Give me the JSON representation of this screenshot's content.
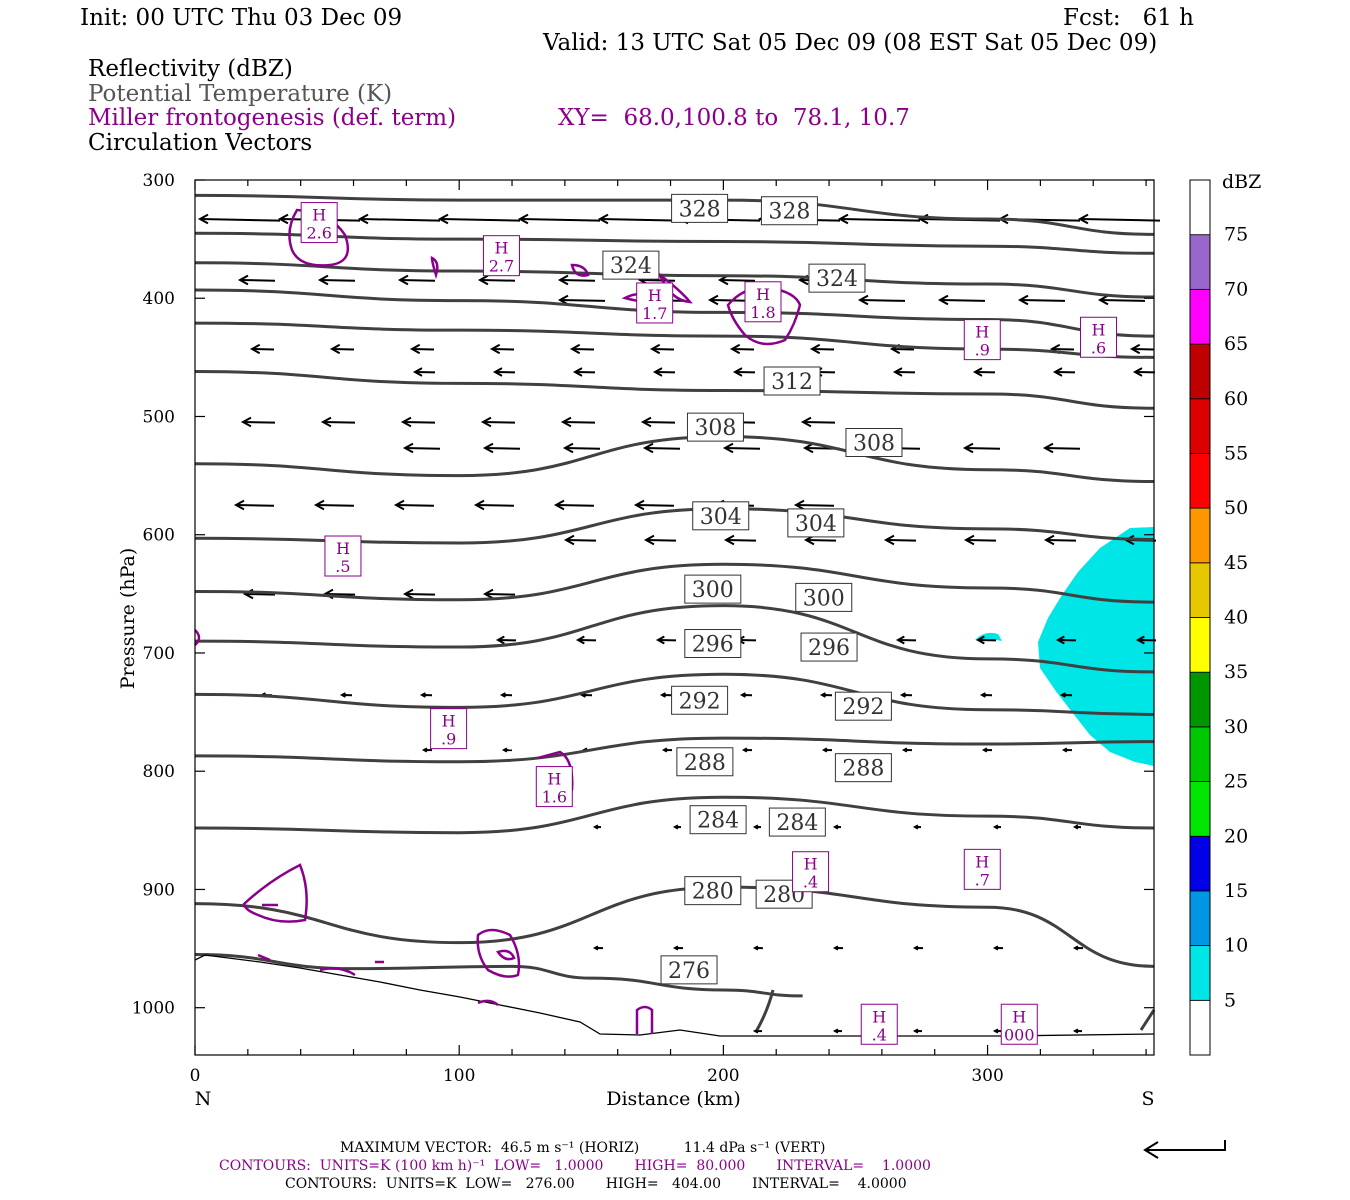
{
  "header": {
    "init": "Init: 00 UTC Thu 03 Dec 09",
    "fcst": "Fcst:   61 h",
    "valid": "Valid: 13 UTC Sat 05 Dec 09 (08 EST Sat 05 Dec 09)",
    "field1": "Reflectivity (dBZ)",
    "field2": "Potential Temperature (K)",
    "field3": "Miller frontogenesis (def. term)",
    "xy": "XY=  68.0,100.8 to  78.1, 10.7",
    "field4": "Circulation Vectors"
  },
  "colors": {
    "theta": "#404040",
    "frontogenesis": "#8b008b",
    "reflectivity_5": "#00e6e6"
  },
  "chart_data": {
    "type": "cross-section",
    "xlabel": "Distance (km)",
    "ylabel": "Pressure (hPa)",
    "xlim": [
      0,
      363
    ],
    "ylim": [
      1040,
      300
    ],
    "x_ticks": [
      "0",
      "100",
      "200",
      "300"
    ],
    "x_tick_values": [
      0,
      100,
      200,
      300
    ],
    "y_ticks": [
      "300",
      "400",
      "500",
      "600",
      "700",
      "800",
      "900",
      "1000"
    ],
    "y_tick_values": [
      300,
      400,
      500,
      600,
      700,
      800,
      900,
      1000
    ],
    "left_end": "N",
    "right_end": "S",
    "theta_series": [
      {
        "value": 276,
        "pressure_at_x": [
          [
            0,
            955
          ],
          [
            60,
            967
          ],
          [
            120,
            965
          ],
          [
            150,
            975
          ],
          [
            200,
            985
          ],
          [
            230,
            990
          ]
        ]
      },
      {
        "value": 280,
        "pressure_at_x": [
          [
            0,
            912
          ],
          [
            100,
            945
          ],
          [
            200,
            898
          ],
          [
            300,
            915
          ],
          [
            363,
            965
          ]
        ]
      },
      {
        "value": 284,
        "pressure_at_x": [
          [
            0,
            848
          ],
          [
            100,
            852
          ],
          [
            200,
            822
          ],
          [
            300,
            838
          ],
          [
            363,
            848
          ]
        ]
      },
      {
        "value": 288,
        "pressure_at_x": [
          [
            0,
            787
          ],
          [
            100,
            792
          ],
          [
            200,
            772
          ],
          [
            300,
            777
          ],
          [
            363,
            775
          ]
        ]
      },
      {
        "value": 292,
        "pressure_at_x": [
          [
            0,
            735
          ],
          [
            100,
            746
          ],
          [
            200,
            718
          ],
          [
            300,
            748
          ],
          [
            363,
            752
          ]
        ]
      },
      {
        "value": 296,
        "pressure_at_x": [
          [
            0,
            690
          ],
          [
            100,
            695
          ],
          [
            200,
            660
          ],
          [
            300,
            705
          ],
          [
            363,
            716
          ]
        ]
      },
      {
        "value": 300,
        "pressure_at_x": [
          [
            0,
            648
          ],
          [
            100,
            655
          ],
          [
            200,
            625
          ],
          [
            300,
            645
          ],
          [
            363,
            657
          ]
        ]
      },
      {
        "value": 304,
        "pressure_at_x": [
          [
            0,
            603
          ],
          [
            100,
            607
          ],
          [
            200,
            578
          ],
          [
            300,
            595
          ],
          [
            363,
            604
          ]
        ]
      },
      {
        "value": 308,
        "pressure_at_x": [
          [
            0,
            540
          ],
          [
            100,
            550
          ],
          [
            200,
            517
          ],
          [
            300,
            545
          ],
          [
            363,
            555
          ]
        ]
      },
      {
        "value": 312,
        "pressure_at_x": [
          [
            0,
            462
          ],
          [
            100,
            472
          ],
          [
            200,
            478
          ],
          [
            300,
            481
          ],
          [
            363,
            493
          ]
        ]
      },
      {
        "value": 316,
        "pressure_at_x": [
          [
            0,
            421
          ],
          [
            100,
            427
          ],
          [
            200,
            432
          ],
          [
            300,
            443
          ],
          [
            363,
            450
          ]
        ]
      },
      {
        "value": 320,
        "pressure_at_x": [
          [
            0,
            393
          ],
          [
            100,
            402
          ],
          [
            200,
            412
          ],
          [
            300,
            418
          ],
          [
            363,
            432
          ]
        ]
      },
      {
        "value": 324,
        "pressure_at_x": [
          [
            0,
            370
          ],
          [
            100,
            377
          ],
          [
            200,
            381
          ],
          [
            300,
            388
          ],
          [
            363,
            399
          ]
        ]
      },
      {
        "value": 328,
        "pressure_at_x": [
          [
            0,
            345
          ],
          [
            100,
            350
          ],
          [
            200,
            352
          ],
          [
            300,
            356
          ],
          [
            363,
            362
          ]
        ]
      },
      {
        "value": 332,
        "pressure_at_x": [
          [
            0,
            313
          ],
          [
            100,
            317
          ],
          [
            200,
            317
          ],
          [
            300,
            333
          ],
          [
            363,
            346
          ]
        ]
      }
    ],
    "theta_labels": [
      {
        "text": "328",
        "x": 191,
        "p": 324
      },
      {
        "text": "328",
        "x": 225,
        "p": 326
      },
      {
        "text": "324",
        "x": 165,
        "p": 372
      },
      {
        "text": "324",
        "x": 243,
        "p": 383
      },
      {
        "text": "312",
        "x": 226,
        "p": 470
      },
      {
        "text": "308",
        "x": 197,
        "p": 509
      },
      {
        "text": "308",
        "x": 257,
        "p": 522
      },
      {
        "text": "304",
        "x": 199,
        "p": 584
      },
      {
        "text": "304",
        "x": 235,
        "p": 590
      },
      {
        "text": "300",
        "x": 196,
        "p": 646
      },
      {
        "text": "300",
        "x": 238,
        "p": 653
      },
      {
        "text": "296",
        "x": 196,
        "p": 692
      },
      {
        "text": "296",
        "x": 240,
        "p": 695
      },
      {
        "text": "292",
        "x": 191,
        "p": 740
      },
      {
        "text": "292",
        "x": 253,
        "p": 745
      },
      {
        "text": "288",
        "x": 193,
        "p": 792
      },
      {
        "text": "288",
        "x": 253,
        "p": 797
      },
      {
        "text": "284",
        "x": 198,
        "p": 841
      },
      {
        "text": "284",
        "x": 228,
        "p": 843
      },
      {
        "text": "280",
        "x": 196,
        "p": 901
      },
      {
        "text": "280",
        "x": 223,
        "p": 904
      },
      {
        "text": "276",
        "x": 187,
        "p": 968
      }
    ],
    "highs": [
      {
        "text": "H",
        "value": "2.6",
        "x": 47,
        "p": 336
      },
      {
        "text": "H",
        "value": "2.7",
        "x": 116,
        "p": 364
      },
      {
        "text": "H",
        "value": "1.7",
        "x": 174,
        "p": 404
      },
      {
        "text": "H",
        "value": "1.8",
        "x": 215,
        "p": 403
      },
      {
        "text": "H",
        "value": ".9",
        "x": 298,
        "p": 435
      },
      {
        "text": "H",
        "value": ".6",
        "x": 342,
        "p": 433
      },
      {
        "text": "H",
        "value": ".5",
        "x": 56,
        "p": 618
      },
      {
        "text": "H",
        "value": ".9",
        "x": 96,
        "p": 764
      },
      {
        "text": "H",
        "value": "1.6",
        "x": 136,
        "p": 813
      },
      {
        "text": "H",
        "value": ".4",
        "x": 233,
        "p": 885
      },
      {
        "text": "H",
        "value": ".7",
        "x": 298,
        "p": 883
      },
      {
        "text": "H",
        "value": ".4",
        "x": 259,
        "p": 1014
      },
      {
        "text": "H",
        "value": "000",
        "x": 312,
        "p": 1014
      }
    ],
    "legend": {
      "title": "dBZ",
      "labels": [
        "5",
        "10",
        "15",
        "20",
        "25",
        "30",
        "35",
        "40",
        "45",
        "50",
        "55",
        "60",
        "65",
        "70",
        "75"
      ],
      "colors": [
        "#00e6e6",
        "#0096e6",
        "#0000e6",
        "#00e600",
        "#00c800",
        "#009600",
        "#ffff00",
        "#e6c800",
        "#ff9600",
        "#ff0000",
        "#dc0000",
        "#be0000",
        "#ff00ff",
        "#9966cc",
        "#ffffff"
      ]
    }
  },
  "footer": {
    "max_vector": "MAXIMUM VECTOR:  46.5 m s⁻¹ (HORIZ)          11.4 dPa s⁻¹ (VERT)",
    "contours_purple": "CONTOURS:  UNITS=K (100 km h)⁻¹  LOW=   1.0000       HIGH=  80.000       INTERVAL=    1.0000",
    "contours_black": "CONTOURS:  UNITS=K  LOW=   276.00       HIGH=   404.00       INTERVAL=    4.0000"
  }
}
